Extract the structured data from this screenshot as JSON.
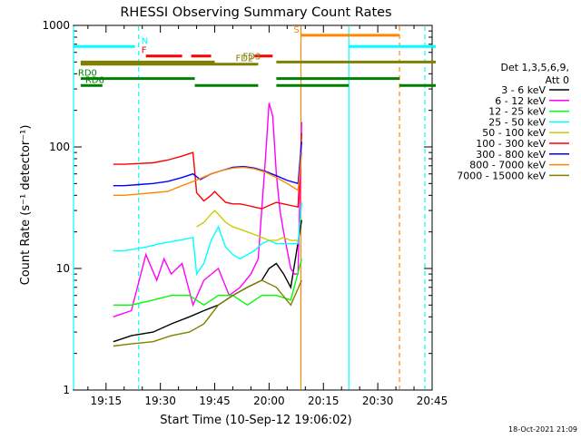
{
  "chart_data": {
    "type": "line",
    "title": "RHESSI Observing Summary Count Rates",
    "xlabel": "Start Time (10-Sep-12 19:06:02)",
    "ylabel": "Count Rate (s⁻¹ detector⁻¹)",
    "y_scale": "log",
    "ylim": [
      1,
      1000
    ],
    "xlim_min": [
      6.03,
      105.0
    ],
    "x_ticks": [
      {
        "v": 15,
        "label": "19:15"
      },
      {
        "v": 30,
        "label": "19:30"
      },
      {
        "v": 45,
        "label": "19:45"
      },
      {
        "v": 60,
        "label": "20:00"
      },
      {
        "v": 75,
        "label": "20:15"
      },
      {
        "v": 90,
        "label": "20:30"
      },
      {
        "v": 105,
        "label": "20:45"
      }
    ],
    "y_ticks": [
      {
        "v": 1,
        "label": "1"
      },
      {
        "v": 10,
        "label": "10"
      },
      {
        "v": 100,
        "label": "100"
      },
      {
        "v": 1000,
        "label": "1000"
      }
    ],
    "grid": false,
    "legend_position": "right",
    "legend_title": [
      "Det 1,3,5,6,9,",
      "Att 0"
    ],
    "series": [
      {
        "name": "3 - 6 keV",
        "color": "#000000",
        "x": [
          17,
          22,
          28,
          33,
          38,
          42,
          46,
          50,
          54,
          58,
          60,
          62,
          64,
          66,
          69
        ],
        "y": [
          2.5,
          2.8,
          3,
          3.5,
          4,
          4.5,
          5,
          6,
          7,
          8,
          10,
          11,
          9,
          7,
          25
        ]
      },
      {
        "name": "6 - 12 keV",
        "color": "#ff00ff",
        "x": [
          17,
          22,
          26,
          29,
          31,
          33,
          36,
          39,
          42,
          46,
          49,
          52,
          55,
          57,
          59,
          60,
          61,
          62,
          63,
          64,
          65,
          66,
          67,
          68,
          69
        ],
        "y": [
          4,
          4.5,
          13,
          8,
          12,
          9,
          11,
          5,
          8,
          10,
          6,
          7,
          9,
          12,
          80,
          230,
          180,
          60,
          30,
          20,
          14,
          10,
          9,
          9,
          160
        ]
      },
      {
        "name": "12 - 25 keV",
        "color": "#00ff00",
        "x": [
          17,
          22,
          28,
          33,
          38,
          42,
          46,
          50,
          54,
          58,
          62,
          66,
          69
        ],
        "y": [
          5,
          5,
          5.5,
          6,
          6,
          5,
          6,
          6,
          5,
          6,
          6,
          5.5,
          12
        ]
      },
      {
        "name": "25 - 50 keV",
        "color": "#00ffff",
        "x": [
          17,
          20,
          23,
          26,
          30,
          35,
          39,
          40,
          42,
          44,
          46,
          48,
          50,
          52,
          54,
          56,
          58,
          60,
          62,
          64,
          66,
          68,
          69
        ],
        "y": [
          14,
          14,
          14.5,
          15,
          16,
          17,
          18,
          9,
          11,
          17,
          22,
          15,
          13,
          12,
          13,
          14,
          16,
          17,
          16,
          16,
          16,
          16,
          35
        ]
      },
      {
        "name": "50 - 100 keV",
        "color": "#cccc00",
        "x": [
          40,
          42,
          44,
          45,
          46,
          48,
          50,
          52,
          54,
          56,
          58,
          60,
          62,
          64,
          66,
          68
        ],
        "y": [
          22,
          24,
          28,
          30,
          28,
          24,
          22,
          21,
          20,
          19,
          18,
          17,
          17,
          18,
          17,
          17
        ]
      },
      {
        "name": "100 - 300 keV",
        "color": "#ff0000",
        "x": [
          17,
          20,
          24,
          28,
          32,
          36,
          39,
          40,
          42,
          44,
          45,
          46,
          48,
          50,
          52,
          54,
          56,
          58,
          60,
          62,
          64,
          66,
          68,
          69
        ],
        "y": [
          72,
          72,
          73,
          74,
          78,
          84,
          90,
          42,
          36,
          40,
          43,
          40,
          35,
          34,
          34,
          33,
          32,
          31,
          33,
          35,
          34,
          33,
          32,
          130
        ]
      },
      {
        "name": "300 - 800 keV",
        "color": "#0000ff",
        "x": [
          17,
          20,
          24,
          28,
          32,
          36,
          39,
          41,
          44,
          47,
          50,
          53,
          56,
          59,
          62,
          65,
          68,
          69
        ],
        "y": [
          48,
          48,
          49,
          50,
          52,
          56,
          60,
          54,
          60,
          64,
          68,
          69,
          67,
          63,
          58,
          53,
          50,
          110
        ]
      },
      {
        "name": "800 - 7000 keV",
        "color": "#ff8800",
        "x": [
          17,
          20,
          24,
          28,
          32,
          36,
          39,
          41,
          44,
          47,
          50,
          53,
          56,
          59,
          62,
          65,
          68,
          69
        ],
        "y": [
          40,
          40,
          41,
          42,
          43,
          48,
          52,
          55,
          60,
          64,
          67,
          68,
          66,
          62,
          56,
          50,
          44,
          90
        ]
      },
      {
        "name": "7000 - 15000 keV",
        "color": "#808000",
        "x": [
          17,
          22,
          28,
          33,
          38,
          42,
          46,
          50,
          54,
          58,
          62,
          66,
          69
        ],
        "y": [
          2.3,
          2.4,
          2.5,
          2.8,
          3,
          3.5,
          5,
          6,
          7,
          8,
          7,
          5,
          8
        ]
      }
    ],
    "event_bars": [
      {
        "label": "N",
        "color": "#00ffff",
        "segments": [
          [
            6.03,
            23.0
          ],
          [
            82.0,
            106.0
          ]
        ],
        "y": 670,
        "label_x": 24.0
      },
      {
        "label": "F",
        "color": "#ff0000",
        "segments": [
          [
            26.0,
            36.0
          ],
          [
            38.5,
            44.0
          ],
          [
            56.0,
            61.0
          ]
        ],
        "y": 560,
        "label_x": 24.0
      },
      {
        "label": "S",
        "color": "#ff8800",
        "segments": [
          [
            68.8,
            96.0
          ]
        ],
        "y": 830,
        "label_x": 66.0
      },
      {
        "label": "FD2",
        "color": "#808000",
        "segments": [
          [
            8.0,
            57.0
          ]
        ],
        "y": 480,
        "label_x": 50.0
      },
      {
        "label": "FD3",
        "color": "#808000",
        "segments": [
          [
            8.0,
            45.0
          ],
          [
            62.0,
            106.0
          ]
        ],
        "y": 500,
        "label_x": 52.0
      },
      {
        "label": "RD0",
        "color": "#008000",
        "segments": [
          [
            8.0,
            39.5
          ],
          [
            62.0,
            96.0
          ]
        ],
        "y": 365,
        "label_x": 6.5
      },
      {
        "label": "RD6",
        "color": "#008000",
        "segments": [
          [
            8.0,
            14.0
          ],
          [
            39.5,
            57.0
          ],
          [
            62.0,
            82.0
          ],
          [
            96.0,
            106.0
          ]
        ],
        "y": 320,
        "label_x": 8.5
      }
    ],
    "vertical_markers": [
      {
        "x": 6.03,
        "color": "#00ffff",
        "style": "solid"
      },
      {
        "x": 24.0,
        "color": "#00ffff",
        "style": "dashed"
      },
      {
        "x": 68.8,
        "color": "#ff8800",
        "style": "solid"
      },
      {
        "x": 82.0,
        "color": "#00ffff",
        "style": "solid"
      },
      {
        "x": 96.0,
        "color": "#ff8800",
        "style": "dashed"
      },
      {
        "x": 103.0,
        "color": "#00ffff",
        "style": "dashed"
      }
    ]
  },
  "footer": {
    "generated_date": "18-Oct-2021 21:09"
  }
}
